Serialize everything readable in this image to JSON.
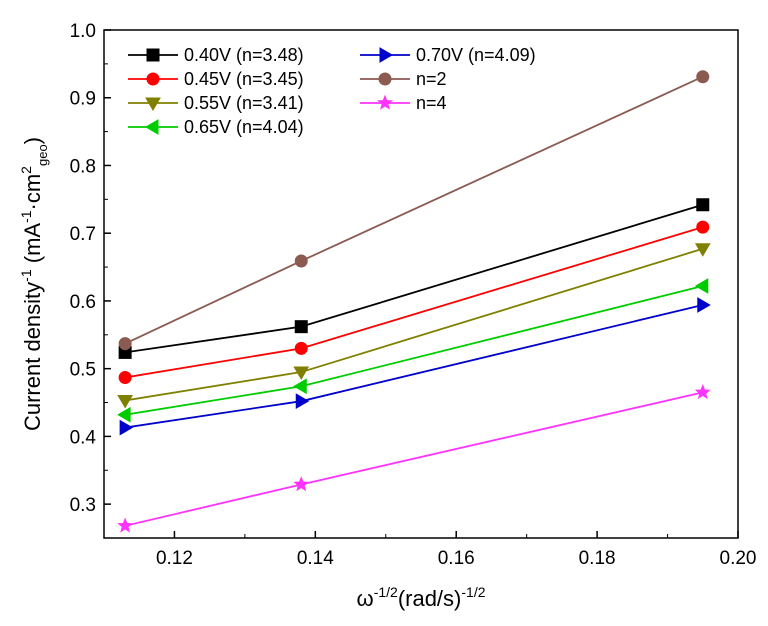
{
  "chart_data": {
    "type": "line",
    "title": "",
    "xlabel": {
      "base": "ω",
      "base_sup": "-1/2",
      "rest": "(rad/s)",
      "rest_sup": "-1/2"
    },
    "ylabel": {
      "base": "Current density",
      "base_sup": "-1",
      "open": " (mA",
      "a_sup": "-1",
      "mid": "·cm",
      "cm_sup": "2",
      "cm_sub": "geo",
      "close": ")"
    },
    "xlim": [
      0.11,
      0.2
    ],
    "ylim": [
      0.25,
      1.0
    ],
    "x_ticks": [
      "0.12",
      "0.14",
      "0.16",
      "0.18",
      "0.20"
    ],
    "y_ticks": [
      "0.3",
      "0.4",
      "0.5",
      "0.6",
      "0.7",
      "0.8",
      "0.9",
      "1.0"
    ],
    "x": [
      0.113,
      0.138,
      0.195
    ],
    "legend_position": "top-left",
    "series": [
      {
        "name": "0.40V (n=3.48)",
        "values": [
          0.524,
          0.562,
          0.742
        ],
        "color": "#000000",
        "marker": "square"
      },
      {
        "name": "0.45V (n=3.45)",
        "values": [
          0.487,
          0.53,
          0.709
        ],
        "color": "#ff0000",
        "marker": "circle"
      },
      {
        "name": "0.55V (n=3.41)",
        "values": [
          0.453,
          0.495,
          0.677
        ],
        "color": "#808000",
        "marker": "triangle-down"
      },
      {
        "name": "0.65V (n=4.04)",
        "values": [
          0.432,
          0.474,
          0.622
        ],
        "color": "#00cc00",
        "marker": "triangle-left"
      },
      {
        "name": "0.70V (n=4.09)",
        "values": [
          0.413,
          0.452,
          0.594
        ],
        "color": "#0000cc",
        "marker": "triangle-right"
      },
      {
        "name": "n=2",
        "values": [
          0.537,
          0.659,
          0.931
        ],
        "color": "#8b5a50",
        "marker": "circle"
      },
      {
        "name": "n=4",
        "values": [
          0.268,
          0.329,
          0.465
        ],
        "color": "#ff33ff",
        "marker": "star"
      }
    ]
  }
}
